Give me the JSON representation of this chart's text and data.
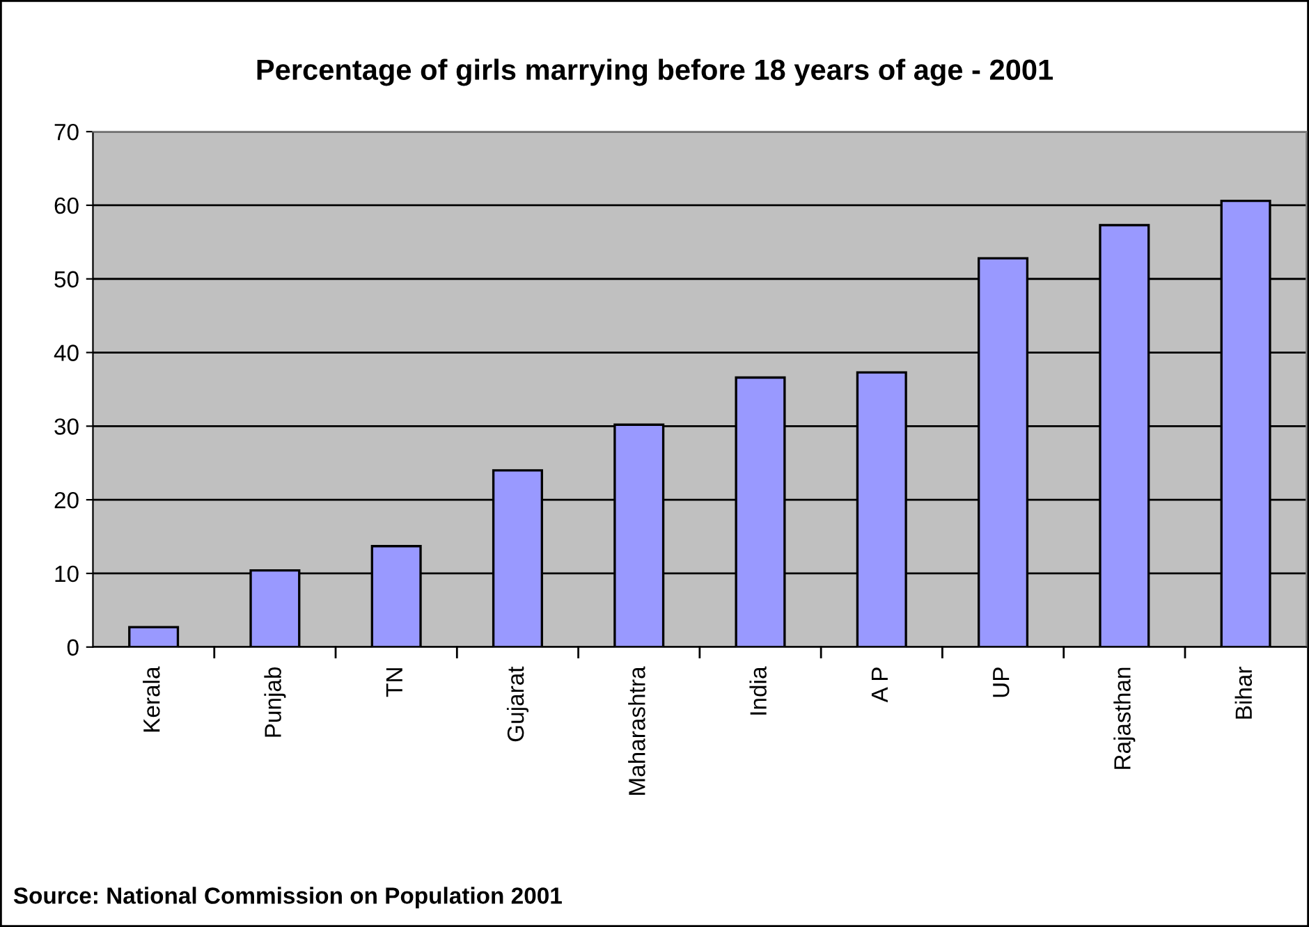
{
  "chart_data": {
    "type": "bar",
    "title": "Percentage of girls marrying before 18 years of age - 2001",
    "categories": [
      "Kerala",
      "Punjab",
      "TN",
      "Gujarat",
      "Maharashtra",
      "India",
      "A P",
      "UP",
      "Rajasthan",
      "Bihar"
    ],
    "values": [
      2.7,
      10.4,
      13.7,
      24.0,
      30.2,
      36.6,
      37.3,
      52.8,
      57.3,
      60.6
    ],
    "color": "#9999ff",
    "ylim": [
      0,
      70
    ],
    "yticks": [
      0,
      10,
      20,
      30,
      40,
      50,
      60,
      70
    ],
    "grid": "y",
    "annotations": [
      "Source: National Commission on Population 2001"
    ]
  }
}
